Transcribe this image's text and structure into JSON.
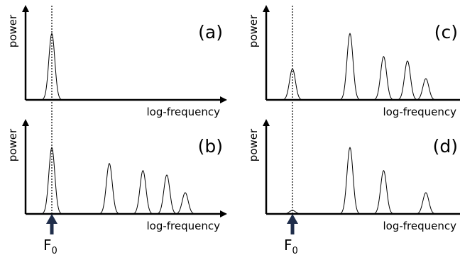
{
  "f0_label": "F",
  "f0_subscript": "0",
  "colors": {
    "axis": "#000000",
    "curve": "#000000",
    "arrow": "#1f2d4a"
  },
  "panels": [
    {
      "id": "a",
      "label": "(a)",
      "ylabel": "power",
      "xlabel": "log-frequency",
      "peaks": [
        {
          "x": 0.0,
          "h": 0.75
        }
      ]
    },
    {
      "id": "b",
      "label": "(b)",
      "ylabel": "power",
      "xlabel": "log-frequency",
      "peaks": [
        {
          "x": 0.0,
          "h": 0.75
        },
        {
          "x": 1.0,
          "h": 0.57
        },
        {
          "x": 1.585,
          "h": 0.49
        },
        {
          "x": 2.0,
          "h": 0.44
        },
        {
          "x": 2.32,
          "h": 0.24
        }
      ]
    },
    {
      "id": "c",
      "label": "(c)",
      "ylabel": "power",
      "xlabel": "log-frequency",
      "peaks": [
        {
          "x": 0.0,
          "h": 0.35
        },
        {
          "x": 1.0,
          "h": 0.75
        },
        {
          "x": 1.585,
          "h": 0.49
        },
        {
          "x": 2.0,
          "h": 0.44
        },
        {
          "x": 2.32,
          "h": 0.24
        }
      ]
    },
    {
      "id": "d",
      "label": "(d)",
      "ylabel": "power",
      "xlabel": "log-frequency",
      "peaks": [
        {
          "x": 0.0,
          "h": 0.04
        },
        {
          "x": 1.0,
          "h": 0.75
        },
        {
          "x": 1.585,
          "h": 0.49
        },
        {
          "x": 2.32,
          "h": 0.24
        }
      ]
    }
  ]
}
